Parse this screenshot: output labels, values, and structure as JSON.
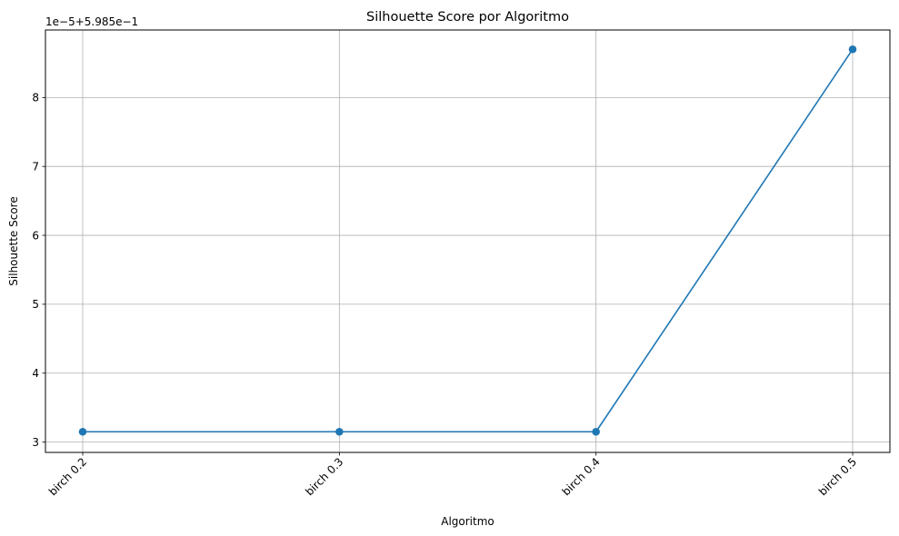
{
  "chart_data": {
    "type": "line",
    "title": "Silhouette Score por Algoritmo",
    "xlabel": "Algoritmo",
    "ylabel": "Silhouette Score",
    "offset_text": "1e−5+5.985e−1",
    "categories": [
      "birch 0.2",
      "birch 0.3",
      "birch 0.4",
      "birch 0.5"
    ],
    "series": [
      {
        "values": [
          3.15,
          3.15,
          3.15,
          8.7
        ]
      }
    ],
    "yticks": [
      3,
      4,
      5,
      6,
      7,
      8
    ],
    "ylim": [
      2.85,
      8.98
    ],
    "grid": true,
    "legend": "none",
    "colors": {
      "line": "#1f77b4",
      "grid": "#b0b0b0",
      "axis": "#000000"
    }
  }
}
